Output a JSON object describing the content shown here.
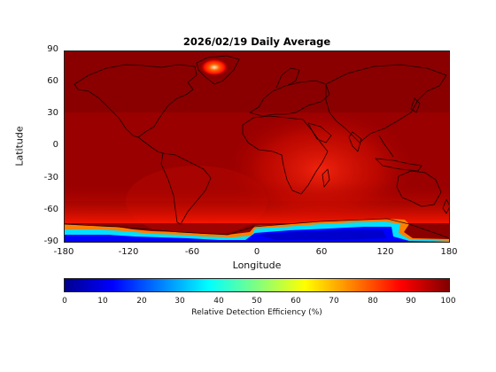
{
  "title": "2026/02/19 Daily Average",
  "x_axis": {
    "label": "Longitude",
    "ticks": [
      {
        "value": -180,
        "label": "-180"
      },
      {
        "value": -120,
        "label": "-120"
      },
      {
        "value": -60,
        "label": "-60"
      },
      {
        "value": 0,
        "label": "0"
      },
      {
        "value": 60,
        "label": "60"
      },
      {
        "value": 120,
        "label": "120"
      },
      {
        "value": 180,
        "label": "180"
      }
    ],
    "range": [
      -180,
      180
    ]
  },
  "y_axis": {
    "label": "Latitude",
    "ticks": [
      {
        "value": 90,
        "label": "90"
      },
      {
        "value": 60,
        "label": "60"
      },
      {
        "value": 30,
        "label": "30"
      },
      {
        "value": 0,
        "label": "0"
      },
      {
        "value": -30,
        "label": "-30"
      },
      {
        "value": -60,
        "label": "-60"
      },
      {
        "value": -90,
        "label": "-90"
      }
    ],
    "range": [
      -90,
      90
    ]
  },
  "colorbar": {
    "label": "Relative Detection Efficiency (%)",
    "colormap": "jet",
    "range": [
      0,
      100
    ],
    "ticks": [
      {
        "value": 0,
        "label": "0"
      },
      {
        "value": 10,
        "label": "10"
      },
      {
        "value": 20,
        "label": "20"
      },
      {
        "value": 30,
        "label": "30"
      },
      {
        "value": 40,
        "label": "40"
      },
      {
        "value": 50,
        "label": "50"
      },
      {
        "value": 60,
        "label": "60"
      },
      {
        "value": 70,
        "label": "70"
      },
      {
        "value": 80,
        "label": "80"
      },
      {
        "value": 90,
        "label": "90"
      },
      {
        "value": 100,
        "label": "100"
      }
    ]
  },
  "colors": {
    "background_field": "#800000",
    "high": "#c00000",
    "mid": "#ff3000",
    "low": "#0000ff"
  }
}
